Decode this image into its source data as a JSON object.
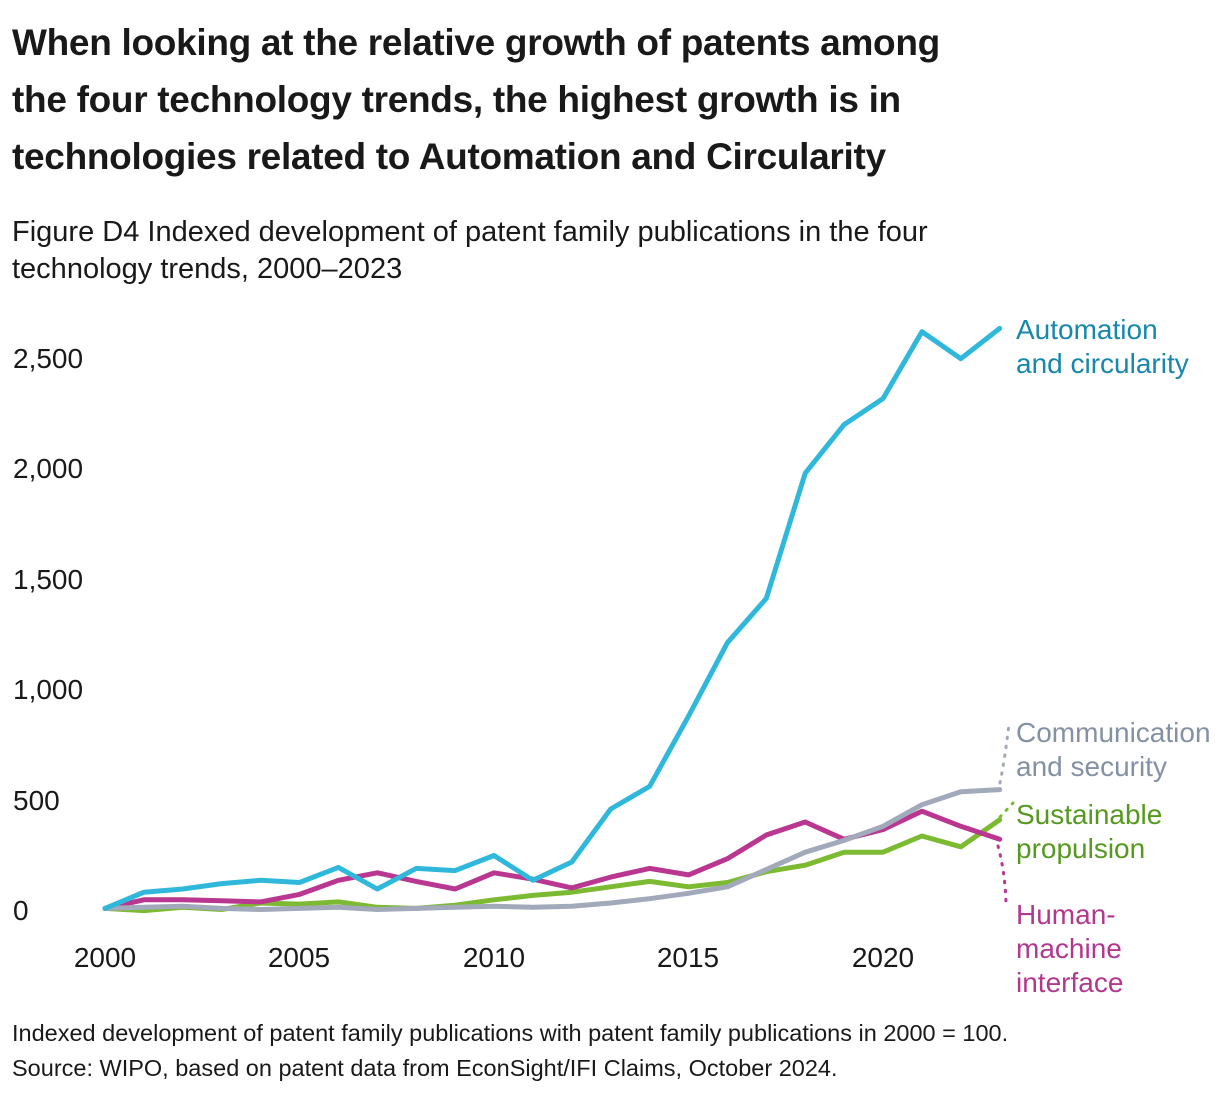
{
  "header": {
    "title_lines": [
      "When looking at the relative growth of patents among",
      "the four technology trends, the highest growth is in",
      "technologies related to Automation and Circularity"
    ],
    "subtitle_lines": [
      "Figure D4 Indexed development of patent family publications in the four",
      "technology trends, 2000–2023"
    ]
  },
  "axis": {
    "y_ticks": [
      "0",
      "500",
      "1,000",
      "1,500",
      "2,000",
      "2,500"
    ],
    "x_ticks": [
      "2000",
      "2005",
      "2010",
      "2015",
      "2020"
    ]
  },
  "legend": {
    "automation": {
      "lines": [
        "Automation",
        "and circularity"
      ],
      "color": "#1787AB"
    },
    "communication": {
      "lines": [
        "Communication",
        "and security"
      ],
      "color": "#8490A4"
    },
    "sustainable": {
      "lines": [
        "Sustainable",
        "propulsion"
      ],
      "color": "#55991E"
    },
    "human": {
      "lines": [
        "Human-",
        "machine",
        "interface"
      ],
      "color": "#B2388F"
    }
  },
  "footer": {
    "note": "Indexed development of patent family publications with patent family publications in 2000 = 100.",
    "source": "Source: WIPO, based on patent data from EconSight/IFI Claims, October 2024."
  },
  "chart_data": {
    "type": "line",
    "title": "Figure D4 Indexed development of patent family publications in the four technology trends, 2000–2023",
    "index_note": "2000 = 100",
    "x": [
      2000,
      2001,
      2002,
      2003,
      2004,
      2005,
      2006,
      2007,
      2008,
      2009,
      2010,
      2011,
      2012,
      2013,
      2014,
      2015,
      2016,
      2017,
      2018,
      2019,
      2020,
      2021,
      2022,
      2023
    ],
    "ylim": [
      0,
      2800
    ],
    "grid": false,
    "legend_position": "right-annotations",
    "series": [
      {
        "id": "automation-and-circularity",
        "name": "Automation and circularity",
        "color": "#2FB8DC",
        "label_color": "#1787AB",
        "values": [
          100,
          175,
          190,
          215,
          230,
          220,
          290,
          190,
          285,
          275,
          345,
          230,
          315,
          560,
          665,
          990,
          1330,
          1535,
          2115,
          2340,
          2460,
          2770,
          2645,
          2785
        ]
      },
      {
        "id": "communication-and-security",
        "name": "Communication and security",
        "color": "#A2A9BA",
        "label_color": "#8490A4",
        "values": [
          100,
          105,
          110,
          100,
          95,
          100,
          105,
          95,
          100,
          105,
          110,
          105,
          110,
          125,
          145,
          170,
          200,
          280,
          360,
          415,
          480,
          580,
          640,
          650
        ]
      },
      {
        "id": "sustainable-propulsion",
        "name": "Sustainable propulsion",
        "color": "#7CBA31",
        "label_color": "#55991E",
        "values": [
          100,
          90,
          105,
          95,
          125,
          120,
          130,
          105,
          100,
          115,
          140,
          160,
          175,
          200,
          225,
          200,
          220,
          270,
          300,
          360,
          360,
          435,
          385,
          510
        ]
      },
      {
        "id": "human-machine-interface",
        "name": "Human-machine interface",
        "color": "#B93691",
        "label_color": "#B2388F",
        "values": [
          100,
          140,
          140,
          135,
          130,
          165,
          230,
          265,
          225,
          190,
          265,
          235,
          195,
          245,
          285,
          255,
          330,
          440,
          500,
          420,
          465,
          550,
          480,
          420
        ]
      }
    ]
  }
}
